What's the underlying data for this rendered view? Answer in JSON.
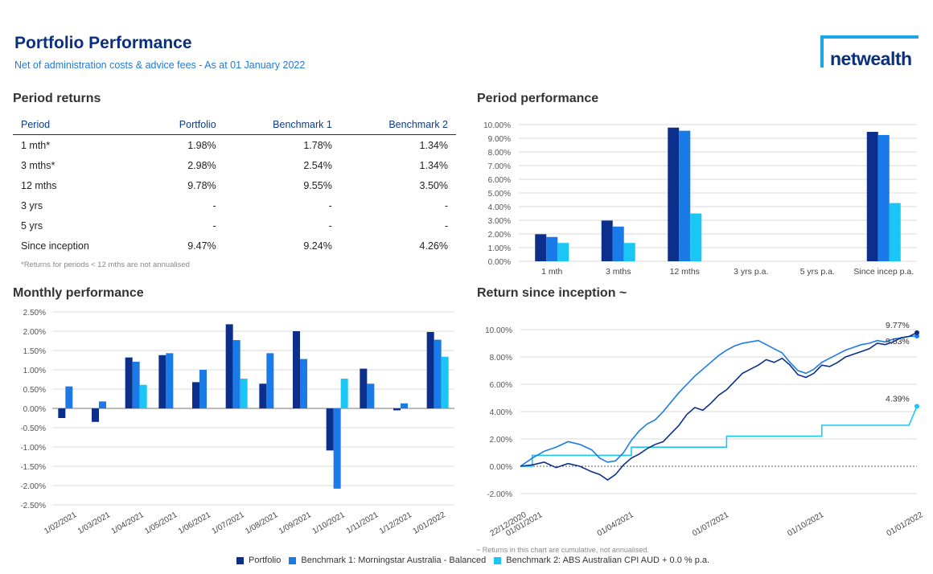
{
  "header": {
    "title": "Portfolio Performance",
    "subtitle": "Net of administration costs & advice fees - As at 01 January 2022",
    "logo_text": "netwealth"
  },
  "colors": {
    "portfolio": "#0b2f8a",
    "benchmark1": "#1a7be8",
    "benchmark2": "#19c6f5"
  },
  "period_returns": {
    "heading": "Period returns",
    "columns": [
      "Period",
      "Portfolio",
      "Benchmark 1",
      "Benchmark 2"
    ],
    "rows": [
      [
        "1 mth*",
        "1.98%",
        "1.78%",
        "1.34%"
      ],
      [
        "3 mths*",
        "2.98%",
        "2.54%",
        "1.34%"
      ],
      [
        "12 mths",
        "9.78%",
        "9.55%",
        "3.50%"
      ],
      [
        "3 yrs",
        "-",
        "-",
        "-"
      ],
      [
        "5 yrs",
        "-",
        "-",
        "-"
      ],
      [
        "Since inception",
        "9.47%",
        "9.24%",
        "4.26%"
      ]
    ],
    "note": "*Returns for periods < 12 mths are not annualised"
  },
  "legend": {
    "portfolio": "Portfolio",
    "benchmark1": "Benchmark 1: Morningstar Australia - Balanced",
    "benchmark2": "Benchmark 2: ABS Australian CPI AUD + 0.0 % p.a."
  },
  "inception_note": "~ Returns in this chart are cumulative, not annualised.",
  "chart_data": [
    {
      "id": "period-performance",
      "type": "bar",
      "title": "Period performance",
      "categories": [
        "1 mth",
        "3 mths",
        "12 mths",
        "3 yrs p.a.",
        "5 yrs p.a.",
        "Since incep p.a."
      ],
      "series": [
        {
          "name": "Portfolio",
          "values": [
            1.98,
            2.98,
            9.78,
            null,
            null,
            9.47
          ]
        },
        {
          "name": "Benchmark 1",
          "values": [
            1.78,
            2.54,
            9.55,
            null,
            null,
            9.24
          ]
        },
        {
          "name": "Benchmark 2",
          "values": [
            1.34,
            1.34,
            3.5,
            null,
            null,
            4.26
          ]
        }
      ],
      "ylim": [
        0,
        10
      ],
      "yticks": [
        "0.00%",
        "1.00%",
        "2.00%",
        "3.00%",
        "4.00%",
        "5.00%",
        "6.00%",
        "7.00%",
        "8.00%",
        "9.00%",
        "10.00%"
      ],
      "grid": true
    },
    {
      "id": "monthly-performance",
      "type": "bar",
      "title": "Monthly performance",
      "categories": [
        "1/02/2021",
        "1/03/2021",
        "1/04/2021",
        "1/05/2021",
        "1/06/2021",
        "1/07/2021",
        "1/08/2021",
        "1/09/2021",
        "1/10/2021",
        "1/11/2021",
        "1/12/2021",
        "1/01/2022"
      ],
      "series": [
        {
          "name": "Portfolio",
          "values": [
            -0.25,
            -0.35,
            1.32,
            1.38,
            0.68,
            2.18,
            0.64,
            2.0,
            -1.09,
            1.03,
            -0.05,
            1.98
          ]
        },
        {
          "name": "Benchmark 1",
          "values": [
            0.57,
            0.18,
            1.21,
            1.43,
            1.0,
            1.77,
            1.43,
            1.28,
            -2.08,
            0.64,
            0.13,
            1.78
          ]
        },
        {
          "name": "Benchmark 2",
          "values": [
            0,
            0,
            0.61,
            0,
            0,
            0.77,
            0,
            0,
            0.77,
            0,
            0,
            1.34
          ]
        }
      ],
      "ylim": [
        -2.5,
        2.5
      ],
      "yticks": [
        "2.50%",
        "2.00%",
        "1.50%",
        "1.00%",
        "0.50%",
        "0.00%",
        "-0.50%",
        "-1.00%",
        "-1.50%",
        "-2.00%",
        "-2.50%"
      ],
      "grid": true
    },
    {
      "id": "return-since-inception",
      "type": "line",
      "title": "Return since inception ~",
      "xlabels": [
        "22/12/2020",
        "01/01/2021",
        "01/04/2021",
        "01/07/2021",
        "01/10/2021",
        "01/01/2022"
      ],
      "ylim": [
        -2,
        10
      ],
      "yticks": [
        "10.00%",
        "8.00%",
        "6.00%",
        "4.00%",
        "2.00%",
        "0.00%",
        "-2.00%"
      ],
      "series": [
        {
          "name": "Portfolio",
          "end_label": "9.77%",
          "points": [
            [
              0,
              0
            ],
            [
              0.03,
              0.1
            ],
            [
              0.06,
              0.3
            ],
            [
              0.09,
              -0.1
            ],
            [
              0.12,
              0.2
            ],
            [
              0.15,
              0
            ],
            [
              0.18,
              -0.4
            ],
            [
              0.2,
              -0.6
            ],
            [
              0.22,
              -1.0
            ],
            [
              0.24,
              -0.6
            ],
            [
              0.26,
              0.1
            ],
            [
              0.28,
              0.6
            ],
            [
              0.3,
              0.9
            ],
            [
              0.32,
              1.3
            ],
            [
              0.34,
              1.6
            ],
            [
              0.36,
              1.8
            ],
            [
              0.38,
              2.4
            ],
            [
              0.4,
              3.0
            ],
            [
              0.42,
              3.8
            ],
            [
              0.44,
              4.3
            ],
            [
              0.46,
              4.1
            ],
            [
              0.48,
              4.6
            ],
            [
              0.5,
              5.2
            ],
            [
              0.52,
              5.6
            ],
            [
              0.54,
              6.2
            ],
            [
              0.56,
              6.8
            ],
            [
              0.58,
              7.1
            ],
            [
              0.6,
              7.4
            ],
            [
              0.62,
              7.8
            ],
            [
              0.64,
              7.6
            ],
            [
              0.66,
              7.9
            ],
            [
              0.68,
              7.4
            ],
            [
              0.7,
              6.7
            ],
            [
              0.72,
              6.5
            ],
            [
              0.74,
              6.8
            ],
            [
              0.76,
              7.4
            ],
            [
              0.78,
              7.3
            ],
            [
              0.8,
              7.6
            ],
            [
              0.82,
              8.0
            ],
            [
              0.84,
              8.2
            ],
            [
              0.86,
              8.4
            ],
            [
              0.88,
              8.6
            ],
            [
              0.9,
              9.0
            ],
            [
              0.92,
              8.9
            ],
            [
              0.94,
              9.1
            ],
            [
              0.96,
              9.4
            ],
            [
              0.98,
              9.5
            ],
            [
              1.0,
              9.77
            ]
          ]
        },
        {
          "name": "Benchmark 1",
          "end_label": "9.53%",
          "points": [
            [
              0,
              0
            ],
            [
              0.03,
              0.6
            ],
            [
              0.06,
              1.1
            ],
            [
              0.09,
              1.4
            ],
            [
              0.12,
              1.8
            ],
            [
              0.15,
              1.6
            ],
            [
              0.18,
              1.2
            ],
            [
              0.2,
              0.6
            ],
            [
              0.22,
              0.3
            ],
            [
              0.24,
              0.4
            ],
            [
              0.26,
              1.0
            ],
            [
              0.28,
              1.9
            ],
            [
              0.3,
              2.6
            ],
            [
              0.32,
              3.1
            ],
            [
              0.34,
              3.4
            ],
            [
              0.36,
              4.0
            ],
            [
              0.38,
              4.7
            ],
            [
              0.4,
              5.4
            ],
            [
              0.42,
              6.0
            ],
            [
              0.44,
              6.6
            ],
            [
              0.46,
              7.1
            ],
            [
              0.48,
              7.6
            ],
            [
              0.5,
              8.1
            ],
            [
              0.52,
              8.5
            ],
            [
              0.54,
              8.8
            ],
            [
              0.56,
              9.0
            ],
            [
              0.58,
              9.1
            ],
            [
              0.6,
              9.2
            ],
            [
              0.62,
              8.9
            ],
            [
              0.64,
              8.6
            ],
            [
              0.66,
              8.3
            ],
            [
              0.68,
              7.6
            ],
            [
              0.7,
              7.0
            ],
            [
              0.72,
              6.8
            ],
            [
              0.74,
              7.1
            ],
            [
              0.76,
              7.6
            ],
            [
              0.78,
              7.9
            ],
            [
              0.8,
              8.2
            ],
            [
              0.82,
              8.5
            ],
            [
              0.84,
              8.7
            ],
            [
              0.86,
              8.9
            ],
            [
              0.88,
              9.0
            ],
            [
              0.9,
              9.2
            ],
            [
              0.92,
              9.1
            ],
            [
              0.94,
              9.3
            ],
            [
              0.96,
              9.4
            ],
            [
              0.98,
              9.5
            ],
            [
              1.0,
              9.53
            ]
          ]
        },
        {
          "name": "Benchmark 2",
          "end_label": "4.39%",
          "points": [
            [
              0,
              0
            ],
            [
              0.03,
              0
            ],
            [
              0.03,
              0.8
            ],
            [
              0.28,
              0.8
            ],
            [
              0.28,
              1.4
            ],
            [
              0.52,
              1.4
            ],
            [
              0.52,
              2.2
            ],
            [
              0.76,
              2.2
            ],
            [
              0.76,
              3.0
            ],
            [
              0.98,
              3.0
            ],
            [
              1.0,
              4.39
            ]
          ]
        }
      ]
    }
  ]
}
